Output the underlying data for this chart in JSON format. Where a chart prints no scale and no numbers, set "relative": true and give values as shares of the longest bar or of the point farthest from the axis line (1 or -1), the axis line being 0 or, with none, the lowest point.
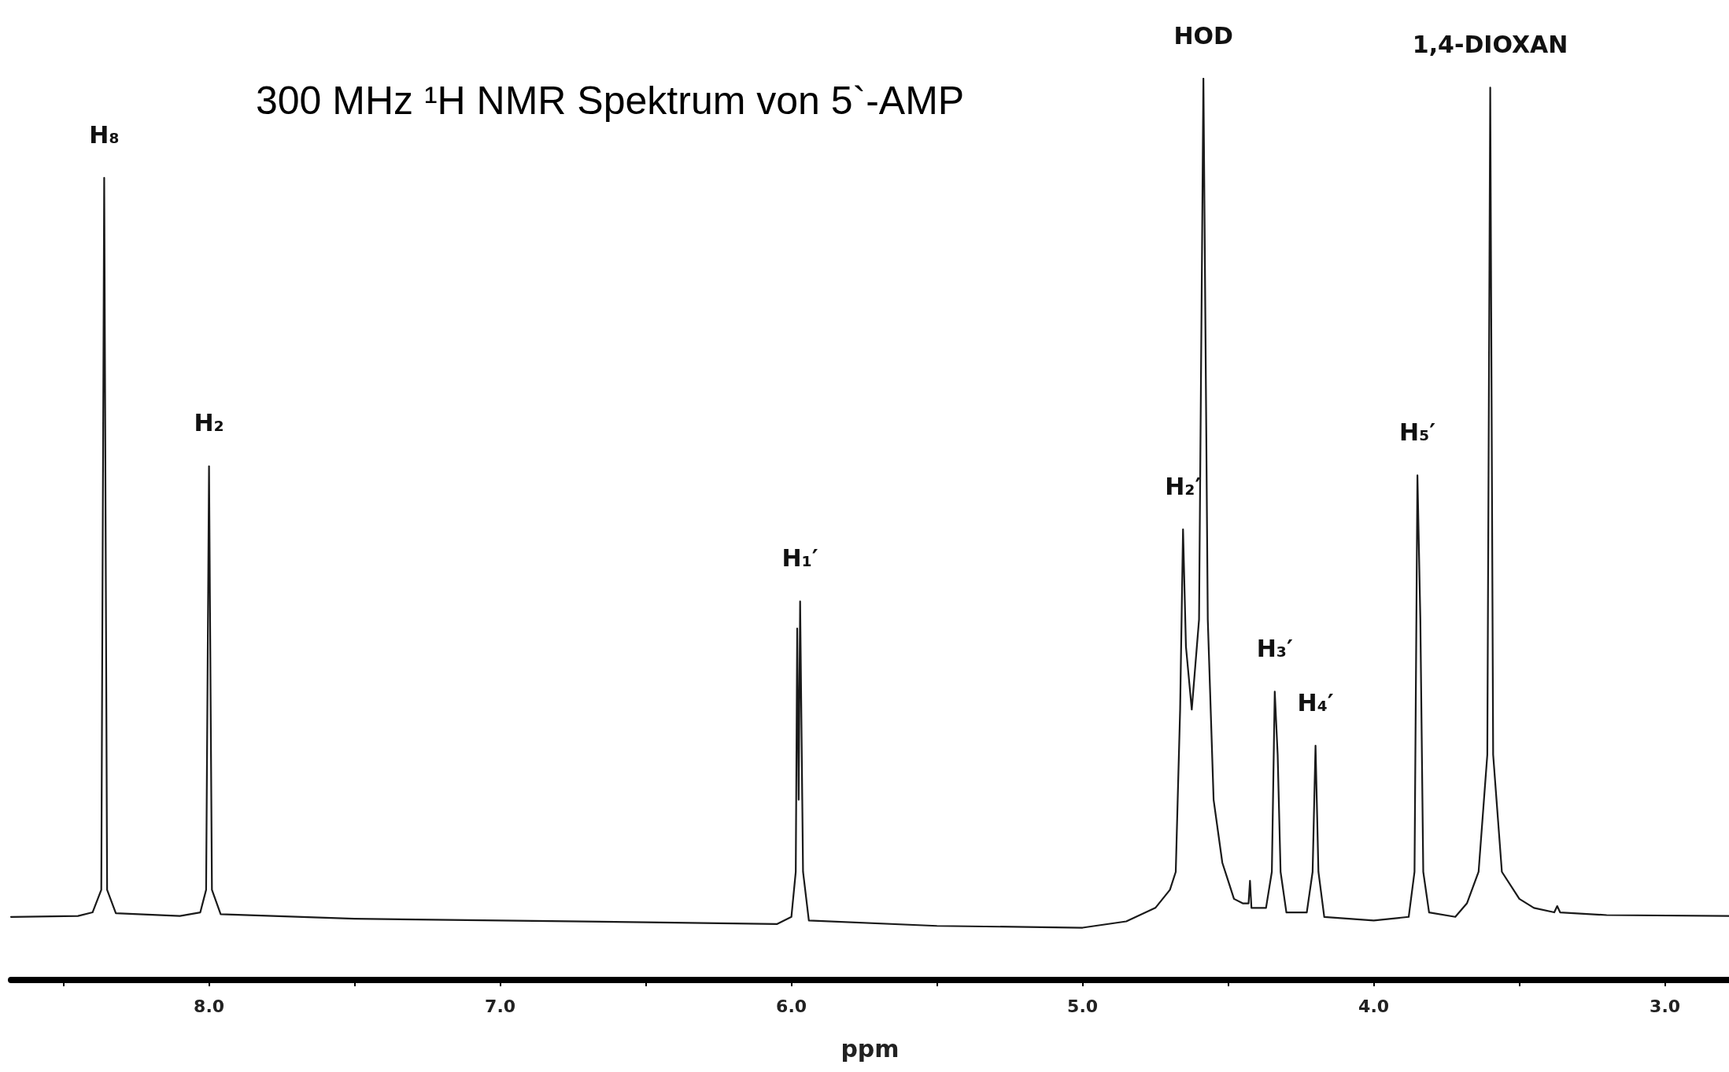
{
  "chart_data": {
    "type": "line",
    "title": "300 MHz ¹H NMR Spektrum von 5`-AMP",
    "xlabel": "ppm",
    "relative": true,
    "marker": "none",
    "line_style": "solid",
    "color": "#1a1a1a",
    "xlim": [
      8.68,
      2.78
    ],
    "xticks": [
      {
        "value": 8.5,
        "label": null
      },
      {
        "value": 8,
        "label": "8.0"
      },
      {
        "value": 7.5,
        "label": null
      },
      {
        "value": 7,
        "label": "7.0"
      },
      {
        "value": 6.5,
        "label": null
      },
      {
        "value": 6,
        "label": "6.0"
      },
      {
        "value": 5.5,
        "label": null
      },
      {
        "value": 5,
        "label": "5.0"
      },
      {
        "value": 4.5,
        "label": null
      },
      {
        "value": 4,
        "label": "4.0"
      },
      {
        "value": 3.5,
        "label": null
      },
      {
        "value": 3,
        "label": "3.0"
      }
    ],
    "x": [
      8.68,
      8.45,
      8.4,
      8.37,
      8.36,
      8.35,
      8.32,
      8.1,
      8.03,
      8.01,
      8.0,
      7.99,
      7.96,
      7.5,
      7.0,
      6.5,
      6.05,
      6.0,
      5.985,
      5.98,
      5.975,
      5.97,
      5.96,
      5.94,
      5.5,
      5.0,
      4.85,
      4.75,
      4.7,
      4.68,
      4.665,
      4.655,
      4.645,
      4.625,
      4.6,
      4.585,
      4.57,
      4.55,
      4.52,
      4.5,
      4.48,
      4.45,
      4.43,
      4.425,
      4.42,
      4.37,
      4.35,
      4.34,
      4.33,
      4.32,
      4.3,
      4.23,
      4.21,
      4.2,
      4.19,
      4.17,
      4.0,
      3.88,
      3.86,
      3.85,
      3.84,
      3.83,
      3.81,
      3.72,
      3.68,
      3.64,
      3.61,
      3.6,
      3.59,
      3.56,
      3.5,
      3.45,
      3.38,
      3.37,
      3.36,
      3.2,
      2.78
    ],
    "values": [
      0.07,
      0.071,
      0.075,
      0.1,
      0.89,
      0.1,
      0.074,
      0.071,
      0.075,
      0.1,
      0.57,
      0.1,
      0.073,
      0.068,
      0.066,
      0.064,
      0.062,
      0.07,
      0.12,
      0.39,
      0.2,
      0.42,
      0.12,
      0.066,
      0.06,
      0.058,
      0.065,
      0.08,
      0.1,
      0.12,
      0.3,
      0.5,
      0.37,
      0.3,
      0.4,
      1.0,
      0.4,
      0.2,
      0.13,
      0.11,
      0.09,
      0.085,
      0.085,
      0.11,
      0.08,
      0.08,
      0.12,
      0.32,
      0.25,
      0.12,
      0.075,
      0.075,
      0.12,
      0.26,
      0.12,
      0.07,
      0.066,
      0.07,
      0.12,
      0.56,
      0.4,
      0.12,
      0.075,
      0.07,
      0.085,
      0.12,
      0.25,
      0.99,
      0.25,
      0.12,
      0.09,
      0.08,
      0.075,
      0.082,
      0.075,
      0.072,
      0.071
    ],
    "annotations": [
      {
        "text": "H₈",
        "x": 8.36,
        "y": 0.89
      },
      {
        "text": "H₂",
        "x": 8.0,
        "y": 0.57
      },
      {
        "text": "H₁′",
        "x": 5.97,
        "y": 0.42
      },
      {
        "text": "H₂′",
        "x": 4.655,
        "y": 0.5
      },
      {
        "text": "HOD",
        "x": 4.585,
        "y": 1.0
      },
      {
        "text": "H₃′",
        "x": 4.34,
        "y": 0.32
      },
      {
        "text": "H₄′",
        "x": 4.2,
        "y": 0.26
      },
      {
        "text": "H₅′",
        "x": 3.85,
        "y": 0.56
      },
      {
        "text": "1,4-DIOXAN",
        "x": 3.6,
        "y": 0.99
      }
    ]
  }
}
